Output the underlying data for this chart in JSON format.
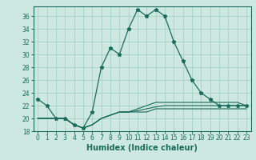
{
  "title": "",
  "xlabel": "Humidex (Indice chaleur)",
  "ylabel": "",
  "bg_color": "#cce8e0",
  "line_color": "#1a6b5a",
  "grid_color": "#aad4c8",
  "x": [
    0,
    1,
    2,
    3,
    4,
    5,
    6,
    7,
    8,
    9,
    10,
    11,
    12,
    13,
    14,
    15,
    16,
    17,
    18,
    19,
    20,
    21,
    22,
    23
  ],
  "series1": [
    23,
    22,
    20,
    20,
    19,
    18.5,
    21,
    28,
    31,
    30,
    34,
    37,
    36,
    37,
    36,
    32,
    29,
    26,
    24,
    23,
    22,
    22,
    22,
    22
  ],
  "series2": [
    20,
    20,
    20,
    20,
    19,
    18.5,
    19,
    20,
    20.5,
    21,
    21,
    21,
    21,
    21.5,
    21.5,
    21.5,
    21.5,
    21.5,
    21.5,
    21.5,
    21.5,
    21.5,
    21.5,
    21.5
  ],
  "series3": [
    20,
    20,
    20,
    20,
    19,
    18.5,
    19,
    20,
    20.5,
    21,
    21,
    21.2,
    21.5,
    21.8,
    22,
    22,
    22,
    22,
    22,
    22,
    22,
    22,
    22,
    22
  ],
  "series4": [
    20,
    20,
    20,
    20,
    19,
    18.5,
    19,
    20,
    20.5,
    21,
    21,
    21.5,
    22,
    22.5,
    22.5,
    22.5,
    22.5,
    22.5,
    22.5,
    22.5,
    22.5,
    22.5,
    22.5,
    22
  ],
  "ylim": [
    18,
    37.5
  ],
  "yticks": [
    18,
    20,
    22,
    24,
    26,
    28,
    30,
    32,
    34,
    36
  ],
  "xticks": [
    0,
    1,
    2,
    3,
    4,
    5,
    6,
    7,
    8,
    9,
    10,
    11,
    12,
    13,
    14,
    15,
    16,
    17,
    18,
    19,
    20,
    21,
    22,
    23
  ]
}
